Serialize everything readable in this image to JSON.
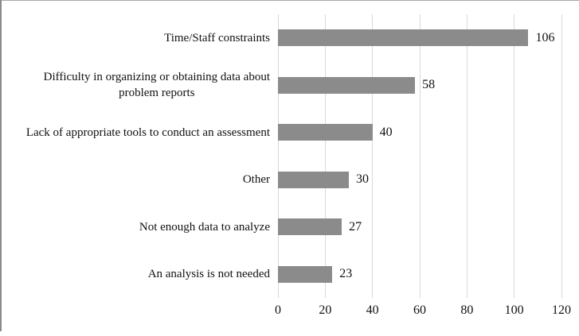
{
  "figure": {
    "title": "",
    "background": "#ffffff",
    "border_top_color": "#a9a9a9",
    "border_left_color": "#8a8a8a"
  },
  "chart_data": {
    "type": "bar",
    "orientation": "horizontal",
    "title": "",
    "xlabel": "",
    "ylabel": "",
    "legend": "none",
    "grid": "vertical",
    "categories": [
      "Time/Staff constraints",
      [
        "Difficulty in organizing or obtaining data about",
        "problem reports"
      ],
      "Lack of appropriate tools to conduct an assessment",
      "Other",
      "Not enough data to analyze",
      "An analysis is not needed"
    ],
    "values": [
      106,
      58,
      40,
      30,
      27,
      23
    ],
    "xlim": [
      0,
      120
    ],
    "x_ticks": [
      0,
      20,
      40,
      60,
      80,
      100,
      120
    ],
    "bar_color": "#8b8b8b",
    "gridline_color": "#d9d9d9",
    "text_color": "#111111"
  }
}
